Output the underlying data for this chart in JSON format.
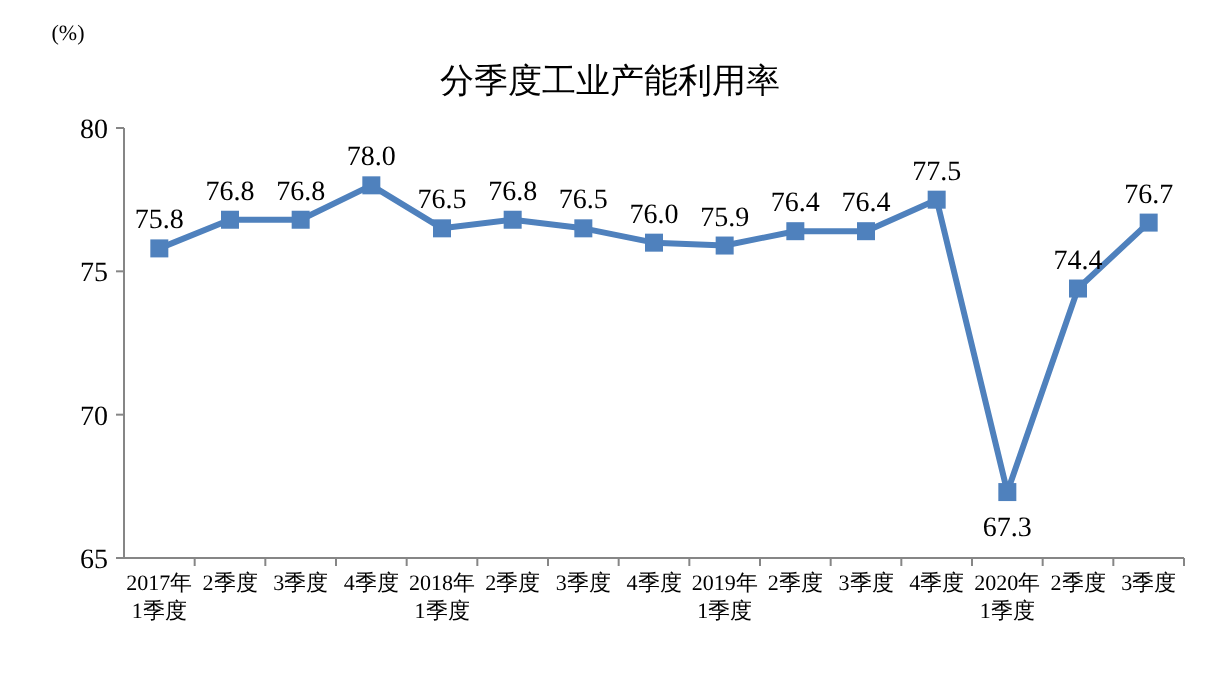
{
  "chart_data": {
    "type": "line",
    "title": "分季度工业产能利用率",
    "ylabel": "(%)",
    "categories": [
      "2017年\n1季度",
      "2季度",
      "3季度",
      "4季度",
      "2018年\n1季度",
      "2季度",
      "3季度",
      "4季度",
      "2019年\n1季度",
      "2季度",
      "3季度",
      "4季度",
      "2020年\n1季度",
      "2季度",
      "3季度"
    ],
    "series": [
      {
        "color": "#4f81bd",
        "values": [
          75.8,
          76.8,
          76.8,
          78.0,
          76.5,
          76.8,
          76.5,
          76.0,
          75.9,
          76.4,
          76.4,
          77.5,
          67.3,
          74.4,
          76.7
        ],
        "value_labels": [
          "75.8",
          "76.8",
          "76.8",
          "78.0",
          "76.5",
          "76.8",
          "76.5",
          "76.0",
          "75.9",
          "76.4",
          "76.4",
          "77.5",
          "67.3",
          "74.4",
          "76.7"
        ]
      }
    ],
    "ylim": [
      65,
      80
    ],
    "yticks": [
      65,
      70,
      75,
      80
    ],
    "marker": "square",
    "line_style": "solid",
    "grid": false
  }
}
